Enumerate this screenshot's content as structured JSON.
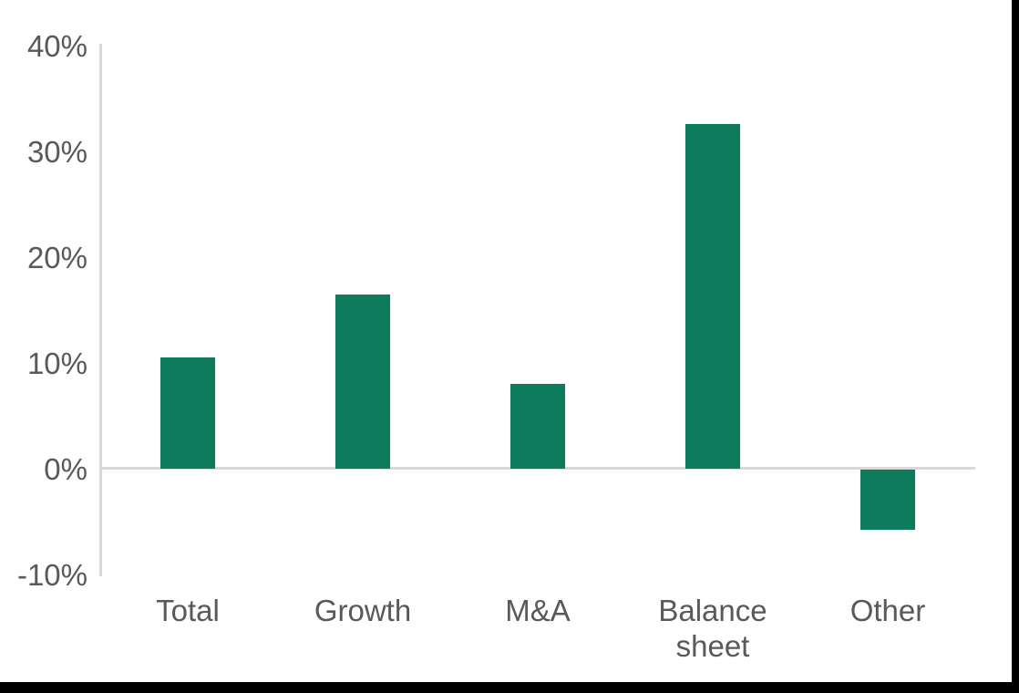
{
  "frame": {
    "background": "#FFFFFF",
    "edge_color": "#000000"
  },
  "chart_data": {
    "type": "bar",
    "title": "",
    "xlabel": "",
    "ylabel": "",
    "unit": "%",
    "categories": [
      "Total",
      "Growth",
      "M&A",
      "Balance sheet",
      "Other"
    ],
    "values": [
      10.5,
      16.5,
      8.0,
      32.6,
      -5.7
    ],
    "ylim": [
      -10,
      40
    ],
    "y_ticks": [
      {
        "label": "40%",
        "value": 40
      },
      {
        "label": "30%",
        "value": 30
      },
      {
        "label": "20%",
        "value": 20
      },
      {
        "label": "10%",
        "value": 10
      },
      {
        "label": "0%",
        "value": 0
      },
      {
        "label": "-10%",
        "value": -10
      }
    ],
    "grid": "zero-baseline-only",
    "legend": "none",
    "bar_color": "#0E7B5D",
    "axis_color": "#D9D9D9",
    "label_color": "#595959"
  }
}
